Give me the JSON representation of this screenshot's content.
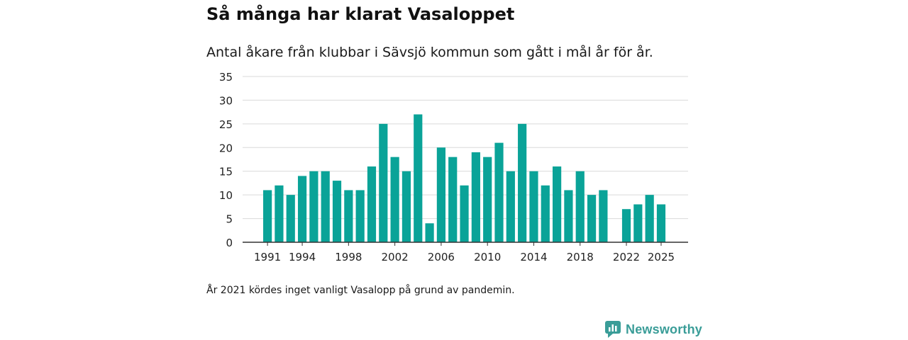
{
  "title": "Så många har klarat Vasaloppet",
  "subtitle": "Antal åkare från klubbar i Sävsjö kommun som gått i mål år för år.",
  "note": "År 2021 kördes inget vanligt Vasalopp på grund av pandemin.",
  "brand": {
    "name": "Newsworthy",
    "icon": "newsworthy-logo-icon"
  },
  "colors": {
    "bar": "#0aa398",
    "grid": "#d9d9d9",
    "axis": "#333333",
    "brand": "#3a9d98"
  },
  "chart_data": {
    "type": "bar",
    "title": "Så många har klarat Vasaloppet",
    "subtitle": "Antal åkare från klubbar i Sävsjö kommun som gått i mål år för år.",
    "xlabel": "",
    "ylabel": "",
    "ylim": [
      0,
      35
    ],
    "yticks": [
      0,
      5,
      10,
      15,
      20,
      25,
      30,
      35
    ],
    "xticks": [
      "1991",
      "1994",
      "1998",
      "2002",
      "2006",
      "2010",
      "2014",
      "2018",
      "2022",
      "2025"
    ],
    "grid": true,
    "categories": [
      "1991",
      "1992",
      "1993",
      "1994",
      "1995",
      "1996",
      "1997",
      "1998",
      "1999",
      "2000",
      "2001",
      "2002",
      "2003",
      "2004",
      "2005",
      "2006",
      "2007",
      "2008",
      "2009",
      "2010",
      "2011",
      "2012",
      "2013",
      "2014",
      "2015",
      "2016",
      "2017",
      "2018",
      "2019",
      "2020",
      "2021",
      "2022",
      "2023",
      "2024",
      "2025"
    ],
    "values": [
      11,
      12,
      10,
      14,
      15,
      15,
      13,
      11,
      11,
      16,
      25,
      18,
      15,
      27,
      4,
      20,
      18,
      12,
      19,
      18,
      21,
      15,
      25,
      15,
      12,
      16,
      11,
      15,
      10,
      11,
      null,
      7,
      8,
      10,
      8
    ]
  }
}
